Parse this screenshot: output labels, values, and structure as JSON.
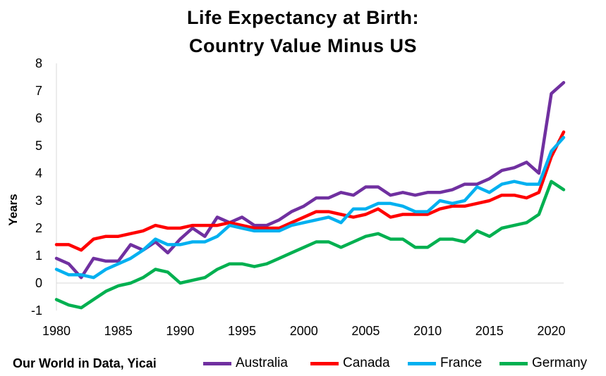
{
  "chart_data": {
    "type": "line",
    "title_lines": [
      "Life Expectancy at Birth:",
      "Country Value Minus US"
    ],
    "xlabel": "",
    "ylabel": "Years",
    "source": "Our World in Data, Yicai",
    "xlim": [
      1980,
      2021
    ],
    "ylim": [
      -1,
      8
    ],
    "xticks": [
      1980,
      1985,
      1990,
      1995,
      2000,
      2005,
      2010,
      2015,
      2020
    ],
    "yticks": [
      -1,
      0,
      1,
      2,
      3,
      4,
      5,
      6,
      7,
      8
    ],
    "grid": false,
    "legend_position": "bottom",
    "x": [
      1980,
      1981,
      1982,
      1983,
      1984,
      1985,
      1986,
      1987,
      1988,
      1989,
      1990,
      1991,
      1992,
      1993,
      1994,
      1995,
      1996,
      1997,
      1998,
      1999,
      2000,
      2001,
      2002,
      2003,
      2004,
      2005,
      2006,
      2007,
      2008,
      2009,
      2010,
      2011,
      2012,
      2013,
      2014,
      2015,
      2016,
      2017,
      2018,
      2019,
      2020,
      2021
    ],
    "series": [
      {
        "name": "Australia",
        "color": "#7030A0",
        "values": [
          0.9,
          0.7,
          0.2,
          0.9,
          0.8,
          0.8,
          1.4,
          1.2,
          1.5,
          1.1,
          1.6,
          2.0,
          1.7,
          2.4,
          2.2,
          2.4,
          2.1,
          2.1,
          2.3,
          2.6,
          2.8,
          3.1,
          3.1,
          3.3,
          3.2,
          3.5,
          3.5,
          3.2,
          3.3,
          3.2,
          3.3,
          3.3,
          3.4,
          3.6,
          3.6,
          3.8,
          4.1,
          4.2,
          4.4,
          4.0,
          6.9,
          7.3
        ]
      },
      {
        "name": "Canada",
        "color": "#FF0000",
        "values": [
          1.4,
          1.4,
          1.2,
          1.6,
          1.7,
          1.7,
          1.8,
          1.9,
          2.1,
          2.0,
          2.0,
          2.1,
          2.1,
          2.1,
          2.2,
          2.1,
          2.0,
          2.0,
          2.0,
          2.2,
          2.4,
          2.6,
          2.6,
          2.5,
          2.4,
          2.5,
          2.7,
          2.4,
          2.5,
          2.5,
          2.5,
          2.7,
          2.8,
          2.8,
          2.9,
          3.0,
          3.2,
          3.2,
          3.1,
          3.3,
          4.6,
          5.5
        ]
      },
      {
        "name": "France",
        "color": "#00B0F0",
        "values": [
          0.5,
          0.3,
          0.3,
          0.2,
          0.5,
          0.7,
          0.9,
          1.2,
          1.6,
          1.4,
          1.4,
          1.5,
          1.5,
          1.7,
          2.1,
          2.0,
          1.9,
          1.9,
          1.9,
          2.1,
          2.2,
          2.3,
          2.4,
          2.2,
          2.7,
          2.7,
          2.9,
          2.9,
          2.8,
          2.6,
          2.6,
          3.0,
          2.9,
          3.0,
          3.5,
          3.3,
          3.6,
          3.7,
          3.6,
          3.6,
          4.8,
          5.3
        ]
      },
      {
        "name": "Germany",
        "color": "#00B050",
        "values": [
          -0.6,
          -0.8,
          -0.9,
          -0.6,
          -0.3,
          -0.1,
          0.0,
          0.2,
          0.5,
          0.4,
          0.0,
          0.1,
          0.2,
          0.5,
          0.7,
          0.7,
          0.6,
          0.7,
          0.9,
          1.1,
          1.3,
          1.5,
          1.5,
          1.3,
          1.5,
          1.7,
          1.8,
          1.6,
          1.6,
          1.3,
          1.3,
          1.6,
          1.6,
          1.5,
          1.9,
          1.7,
          2.0,
          2.1,
          2.2,
          2.5,
          3.7,
          3.4
        ]
      }
    ]
  }
}
